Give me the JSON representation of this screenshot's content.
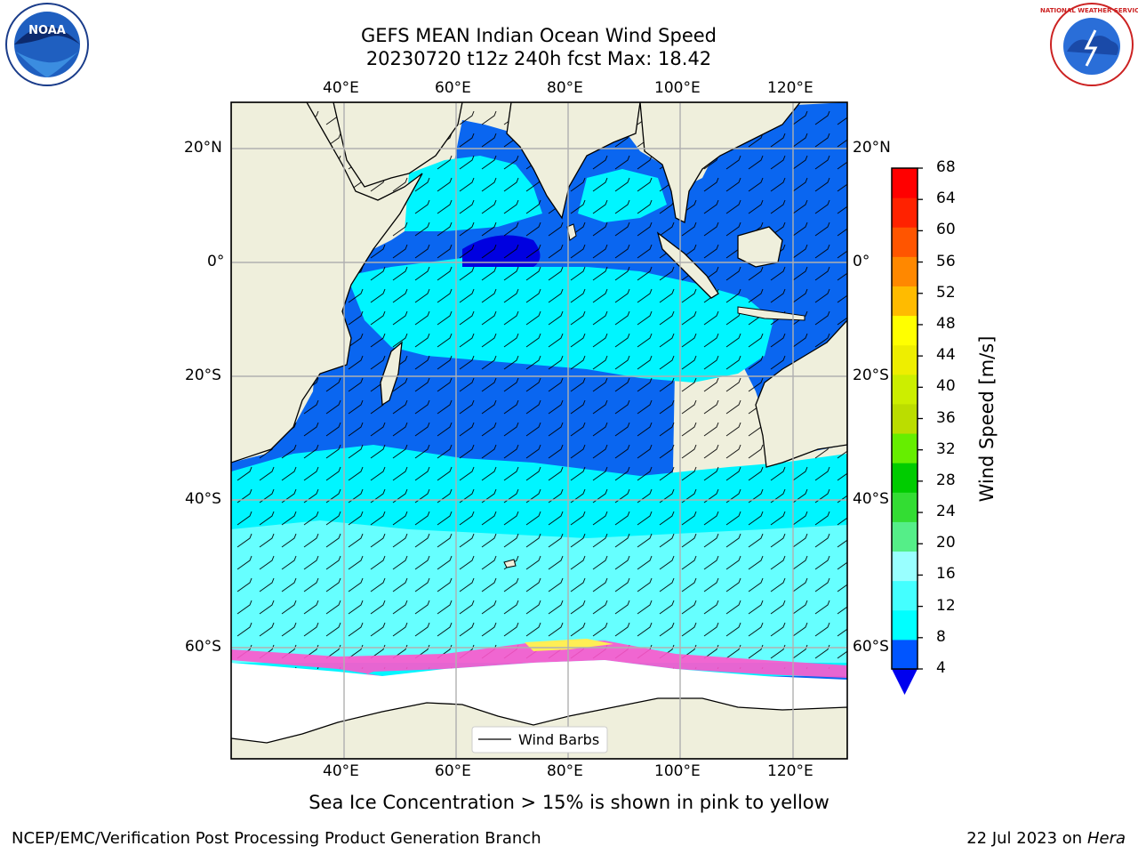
{
  "title_line1": "GEFS MEAN Indian Ocean Wind Speed",
  "title_line2": "20230720 t12z 240h fcst   Max: 18.42",
  "lon_labels": [
    "40°E",
    "60°E",
    "80°E",
    "100°E",
    "120°E"
  ],
  "lat_labels_left": [
    "20°N",
    "0°",
    "20°S",
    "40°S",
    "60°S"
  ],
  "lat_labels_right": [
    "20°N",
    "0°",
    "20°S",
    "40°S",
    "60°S"
  ],
  "colorbar": {
    "label": "Wind Speed [m/s]",
    "ticks": [
      "4",
      "8",
      "12",
      "16",
      "20",
      "24",
      "28",
      "32",
      "36",
      "40",
      "44",
      "48",
      "52",
      "56",
      "60",
      "64",
      "68"
    ],
    "colors": [
      "#0055ff",
      "#00ffff",
      "#44ffff",
      "#99ffff",
      "#55ee88",
      "#33dd33",
      "#00cc00",
      "#66ee00",
      "#bbdd00",
      "#ccee00",
      "#eeee00",
      "#ffff00",
      "#ffbb00",
      "#ff8800",
      "#ff5500",
      "#ff2200",
      "#ff0000"
    ],
    "under_color": "#0000ee"
  },
  "legend_label": "Wind Barbs",
  "ice_note": "Sea Ice Concentration > 15% is shown in pink to yellow",
  "footer_left": "NCEP/EMC/Verification Post Processing Product Generation Branch",
  "footer_date": "22 Jul 2023 on ",
  "footer_machine": "Hera",
  "noaa_logo_text": "NOAA",
  "nws_logo_text": "NATIONAL WEATHER SERVICE",
  "colors": {
    "land": "#efefdc",
    "ocean_low": "#0055ee",
    "ocean_cyan": "#00ffff",
    "ocean_light": "#55ffff",
    "calm": "#0000ee",
    "ice_pink": "#ff66cc",
    "ice_yellow": "#ffee55"
  }
}
